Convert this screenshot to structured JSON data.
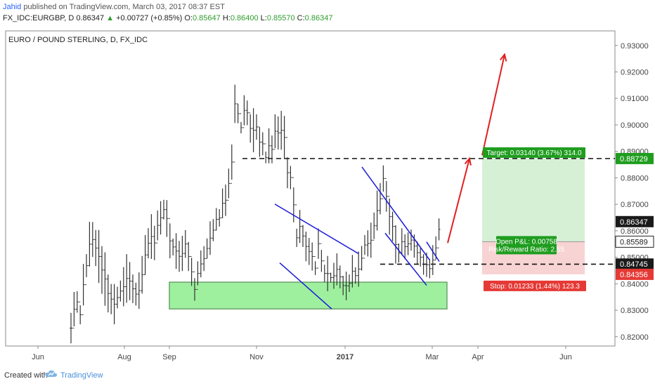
{
  "header": {
    "author": "Jahid",
    "published": "published on TradingView.com, March 03, 2017 08:37 EST",
    "symbol": "FX_IDC:EURGBP, D",
    "last": "0.86347",
    "change": "+0.00727 (+0.85%)",
    "open_label": "O:",
    "open": "0.85647",
    "high_label": "H:",
    "high": "0.86400",
    "low_label": "L:",
    "low": "0.85570",
    "close_label": "C:",
    "close": "0.86347"
  },
  "footer": {
    "created_with": "Created with",
    "brand": "TradingView"
  },
  "colors": {
    "candle": "#333333",
    "channel": "#1a1adb",
    "arrow": "#e02020",
    "zone": "#9ef09e",
    "zone_border": "#6aa36a",
    "target_fill": "#d6f0d6",
    "stop_fill": "#f8d3d3",
    "green_label": "#1f9d1f",
    "red_label": "#e53935",
    "dark_label": "#1a1a1a"
  },
  "chart_data": {
    "type": "candlestick",
    "title": "EURO / POUND STERLING, D, FX_IDC",
    "x_labels": [
      "Jun",
      "Aug",
      "Sep",
      "Nov",
      "2017",
      "Mar",
      "Apr",
      "Jun"
    ],
    "y_ticks": [
      "0.82000",
      "0.83000",
      "0.84000",
      "0.85000",
      "0.86000",
      "0.87000",
      "0.88000",
      "0.89000",
      "0.90000",
      "0.91000",
      "0.92000",
      "0.93000"
    ],
    "ylim": [
      0.8165,
      0.9355
    ],
    "candles": [
      [
        0.829,
        0.8175
      ],
      [
        0.8369,
        0.8239
      ],
      [
        0.8372,
        0.8291
      ],
      [
        0.8319,
        0.8247
      ],
      [
        0.8475,
        0.8318
      ],
      [
        0.8512,
        0.8425
      ],
      [
        0.8634,
        0.8465
      ],
      [
        0.8633,
        0.8501
      ],
      [
        0.8603,
        0.8467
      ],
      [
        0.8603,
        0.8403
      ],
      [
        0.8542,
        0.8362
      ],
      [
        0.8519,
        0.8317
      ],
      [
        0.8435,
        0.8292
      ],
      [
        0.8399,
        0.8285
      ],
      [
        0.8399,
        0.8247
      ],
      [
        0.8389,
        0.8307
      ],
      [
        0.8412,
        0.8333
      ],
      [
        0.8463,
        0.8315
      ],
      [
        0.8512,
        0.8328
      ],
      [
        0.8482,
        0.8338
      ],
      [
        0.8435,
        0.8327
      ],
      [
        0.8404,
        0.8318
      ],
      [
        0.8443,
        0.8305
      ],
      [
        0.8505,
        0.8363
      ],
      [
        0.8584,
        0.8434
      ],
      [
        0.861,
        0.8496
      ],
      [
        0.8663,
        0.8494
      ],
      [
        0.8619,
        0.8489
      ],
      [
        0.8677,
        0.8564
      ],
      [
        0.8712,
        0.8586
      ],
      [
        0.8717,
        0.8643
      ],
      [
        0.8716,
        0.8577
      ],
      [
        0.8628,
        0.8496
      ],
      [
        0.8571,
        0.8507
      ],
      [
        0.8591,
        0.8456
      ],
      [
        0.8562,
        0.8445
      ],
      [
        0.8581,
        0.8448
      ],
      [
        0.8603,
        0.8498
      ],
      [
        0.8558,
        0.8448
      ],
      [
        0.8498,
        0.8392
      ],
      [
        0.8421,
        0.8336
      ],
      [
        0.8485,
        0.8394
      ],
      [
        0.8526,
        0.8424
      ],
      [
        0.8542,
        0.8448
      ],
      [
        0.8571,
        0.8496
      ],
      [
        0.8636,
        0.8509
      ],
      [
        0.8644,
        0.8561
      ],
      [
        0.8686,
        0.8601
      ],
      [
        0.8682,
        0.8616
      ],
      [
        0.876,
        0.8648
      ],
      [
        0.8775,
        0.8656
      ],
      [
        0.8835,
        0.8723
      ],
      [
        0.8926,
        0.8793
      ],
      [
        0.9152,
        0.9007
      ],
      [
        0.9079,
        0.9006
      ],
      [
        0.9011,
        0.8968
      ],
      [
        0.9112,
        0.8998
      ],
      [
        0.9092,
        0.8999
      ],
      [
        0.904,
        0.8933
      ],
      [
        0.9063,
        0.8897
      ],
      [
        0.904,
        0.8944
      ],
      [
        0.8991,
        0.8879
      ],
      [
        0.8972,
        0.8885
      ],
      [
        0.8899,
        0.8855
      ],
      [
        0.8987,
        0.8855
      ],
      [
        0.896,
        0.8855
      ],
      [
        0.904,
        0.8912
      ],
      [
        0.9032,
        0.8907
      ],
      [
        0.9053,
        0.8906
      ],
      [
        0.9034,
        0.8871
      ],
      [
        0.8878,
        0.8761
      ],
      [
        0.8845,
        0.8757
      ],
      [
        0.8764,
        0.8632
      ],
      [
        0.8608,
        0.8539
      ],
      [
        0.8679,
        0.8554
      ],
      [
        0.8622,
        0.8539
      ],
      [
        0.8597,
        0.8485
      ],
      [
        0.8573,
        0.8471
      ],
      [
        0.8556,
        0.845
      ],
      [
        0.8485,
        0.8433
      ],
      [
        0.8609,
        0.8494
      ],
      [
        0.8528,
        0.8445
      ],
      [
        0.8472,
        0.8406
      ],
      [
        0.8505,
        0.8372
      ],
      [
        0.8442,
        0.8405
      ],
      [
        0.8479,
        0.8381
      ],
      [
        0.8515,
        0.8394
      ],
      [
        0.8469,
        0.8383
      ],
      [
        0.843,
        0.8357
      ],
      [
        0.8446,
        0.8338
      ],
      [
        0.8435,
        0.8369
      ],
      [
        0.8509,
        0.8386
      ],
      [
        0.8462,
        0.84
      ],
      [
        0.8522,
        0.8389
      ],
      [
        0.8543,
        0.845
      ],
      [
        0.8584,
        0.8509
      ],
      [
        0.8602,
        0.8503
      ],
      [
        0.8631,
        0.8498
      ],
      [
        0.8669,
        0.8569
      ],
      [
        0.8752,
        0.8601
      ],
      [
        0.878,
        0.8662
      ],
      [
        0.8847,
        0.8748
      ],
      [
        0.8788,
        0.8672
      ],
      [
        0.8722,
        0.8585
      ],
      [
        0.8672,
        0.8561
      ],
      [
        0.8621,
        0.8476
      ],
      [
        0.8552,
        0.848
      ],
      [
        0.861,
        0.8508
      ],
      [
        0.8587,
        0.8493
      ],
      [
        0.8594,
        0.8508
      ],
      [
        0.8605,
        0.8525
      ],
      [
        0.8586,
        0.8499
      ],
      [
        0.8559,
        0.8476
      ],
      [
        0.8536,
        0.8465
      ],
      [
        0.8512,
        0.8434
      ],
      [
        0.8518,
        0.8426
      ],
      [
        0.8493,
        0.8421
      ],
      [
        0.8546,
        0.8433
      ],
      [
        0.8579,
        0.8492
      ],
      [
        0.8647,
        0.8564
      ]
    ],
    "channel_lines": [
      {
        "from": [
          0.8701,
          0.8679
        ],
        "to": [
          0.8514,
          0.8405
        ],
        "label": "upper-1"
      },
      {
        "from": [
          0.8479,
          0.8653
        ],
        "to": [
          0.8305,
          0.8463
        ],
        "label": "lower-1"
      },
      {
        "from": [
          0.8841,
          0.8788
        ],
        "to": [
          0.8491,
          0.8558
        ],
        "label": "upper-2"
      },
      {
        "from": [
          0.8591,
          0.8513
        ],
        "to": [
          0.8394,
          0.8505
        ],
        "label": "lower-2"
      }
    ],
    "support_zone": [
      0.8305,
      0.8406
    ],
    "resistance_level": 0.8873,
    "support_level": 0.8474,
    "position": {
      "target_text": "Target: 0.03140 (3.67%) 314.0",
      "pnl_text": "Open P&L: 0.00758",
      "rr_text": "Risk/Reward Ratio: 2.55",
      "stop_text": "Stop: 0.01233 (1.44%) 123.3",
      "entry": 0.85589,
      "target": 0.88729,
      "stop": 0.84356
    },
    "price_labels": [
      {
        "value": 0.88729,
        "text": "0.88729",
        "style": "green"
      },
      {
        "value": 0.86347,
        "text": "0.86347",
        "style": "dark"
      },
      {
        "value": 0.85589,
        "text": "0.85589",
        "style": "light"
      },
      {
        "value": 0.84745,
        "text": "0.84745",
        "style": "dark"
      },
      {
        "value": 0.84356,
        "text": "0.84356",
        "style": "red"
      }
    ],
    "arrow_path": [
      0.8554,
      0.8873,
      0.9266
    ]
  }
}
